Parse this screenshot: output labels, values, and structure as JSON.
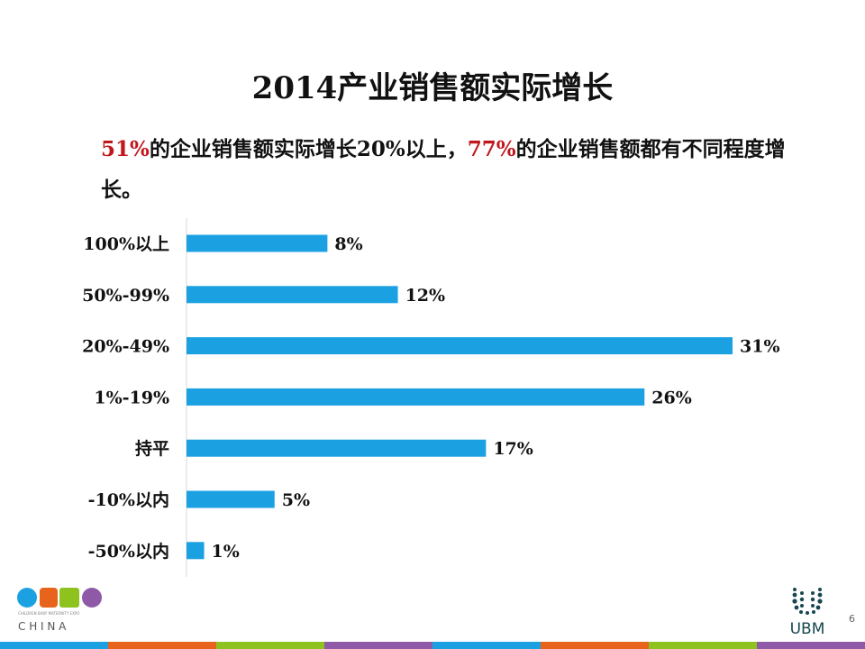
{
  "title": "2014产业销售额实际增长",
  "subtitle": {
    "part1_red": "51%",
    "part2": "的企业销售额实际增长",
    "part3_num": "20%",
    "part4": "以上，",
    "part5_red": "77%",
    "part6": "的企业销售额都有不同程度增长。"
  },
  "chart_data": {
    "type": "bar",
    "orientation": "horizontal",
    "categories": [
      "100%以上",
      "50%-99%",
      "20%-49%",
      "1%-19%",
      "持平",
      "-10%以内",
      "-50%以内"
    ],
    "values": [
      8,
      12,
      31,
      26,
      17,
      5,
      1
    ],
    "data_labels": [
      "8%",
      "12%",
      "31%",
      "26%",
      "17%",
      "5%",
      "1%"
    ],
    "bar_color": "#1ba1e2",
    "grid": false,
    "xlim": [
      0,
      31
    ]
  },
  "footer": {
    "logo_left": "CBME",
    "logo_left_tagline": "CHILDREN BABY MATERNITY EXPO",
    "logo_left_country": "C H I N A",
    "logo_right": "UBM",
    "page_number": "6",
    "stripe_colors": [
      "#1ba1e2",
      "#e8641c",
      "#8dc21f",
      "#8e5aa8",
      "#1ba1e2",
      "#e8641c",
      "#8dc21f",
      "#8e5aa8"
    ]
  }
}
